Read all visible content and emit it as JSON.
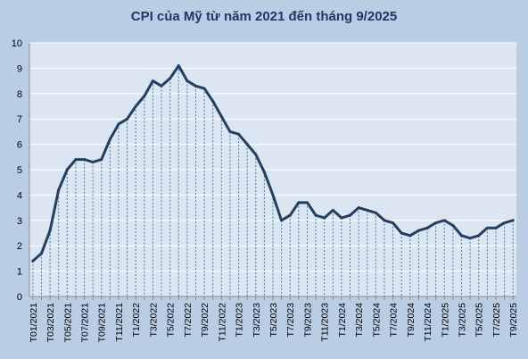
{
  "chart_data": {
    "type": "line",
    "title": "CPI của Mỹ từ năm 2021 đến tháng 9/2025",
    "xlabel": "",
    "ylabel": "",
    "ylim": [
      0,
      10
    ],
    "yticks": [
      0,
      1,
      2,
      3,
      4,
      5,
      6,
      7,
      8,
      9,
      10
    ],
    "grid": "horizontal",
    "drop_lines": true,
    "colors": {
      "background": "#b9cde5",
      "plot_area": "#dce6f2",
      "line": "#243f60",
      "drop_line": "#31859c",
      "gridline": "#ffffff"
    },
    "x": [
      "T01/2021",
      "T02/2021",
      "T03/2021",
      "T04/2021",
      "T05/2021",
      "T06/2021",
      "T07/2021",
      "T08/2021",
      "T09/2021",
      "T10/2021",
      "T11/2021",
      "T12/2021",
      "T1/2022",
      "T2/2022",
      "T3/2022",
      "T4/2022",
      "T5/2022",
      "T6/2022",
      "T7/2022",
      "T8/2022",
      "T9/2022",
      "T10/2022",
      "T11/2022",
      "T12/2022",
      "T1/2023",
      "T2/2023",
      "T3/2023",
      "T4/2023",
      "T5/2023",
      "T6/2023",
      "T7/2023",
      "T8/2023",
      "T9/2023",
      "T10/2023",
      "T11/2023",
      "T12/2023",
      "T1/2024",
      "T2/2024",
      "T3/2024",
      "T4/2024",
      "T5/2024",
      "T6/2024",
      "T7/2024",
      "T8/2024",
      "T9/2024",
      "T10/2024",
      "T11/2024",
      "T12/2024",
      "T1/2025",
      "T2/2025",
      "T3/2025",
      "T4/2025",
      "T5/2025",
      "T6/2025",
      "T7/2025",
      "T8/2025",
      "T9/2025"
    ],
    "x_tick_labels": [
      "T01/2021",
      "T03/2021",
      "T05/2021",
      "T07/2021",
      "T09/2021",
      "T11/2021",
      "T1/2022",
      "T3/2022",
      "T5/2022",
      "T7/2022",
      "T9/2022",
      "T11/2022",
      "T1/2023",
      "T3/2023",
      "T5/2023",
      "T7/2023",
      "T9/2023",
      "T11/2023",
      "T1/2024",
      "T3/2024",
      "T5/2024",
      "T7/2024",
      "T9/2024",
      "T11/2024",
      "T1/2025",
      "T3/2025",
      "T5/2025",
      "T7/2025",
      "T9/2025"
    ],
    "series": [
      {
        "values": [
          1.4,
          1.7,
          2.6,
          4.2,
          5.0,
          5.4,
          5.4,
          5.3,
          5.4,
          6.2,
          6.8,
          7.0,
          7.5,
          7.9,
          8.5,
          8.3,
          8.6,
          9.1,
          8.5,
          8.3,
          8.2,
          7.7,
          7.1,
          6.5,
          6.4,
          6.0,
          5.6,
          4.9,
          4.0,
          3.0,
          3.2,
          3.7,
          3.7,
          3.2,
          3.1,
          3.4,
          3.1,
          3.2,
          3.5,
          3.4,
          3.3,
          3.0,
          2.9,
          2.5,
          2.4,
          2.6,
          2.7,
          2.9,
          3.0,
          2.8,
          2.4,
          2.3,
          2.4,
          2.7,
          2.7,
          2.9,
          3.0
        ]
      }
    ]
  }
}
